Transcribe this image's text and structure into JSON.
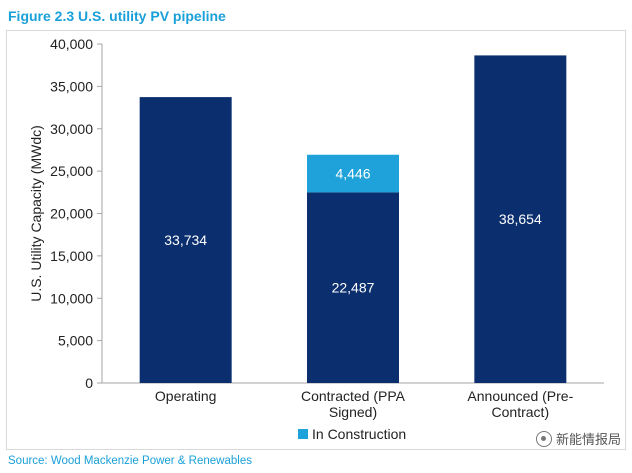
{
  "figure_title": "Figure 2.3 U.S. utility PV pipeline",
  "source": "Source: Wood Mackenzie Power & Renewables",
  "watermark": {
    "text": "新能情报局",
    "icon": "wechat-icon"
  },
  "colors": {
    "primary": "#0b2f6e",
    "secondary": "#1ea2d9",
    "title": "#1aa0d8"
  },
  "chart_data": {
    "type": "bar",
    "stacked": true,
    "ylabel": "U.S. Utility Capacity (MWdc)",
    "ylim": [
      0,
      40000
    ],
    "yticks": [
      "0",
      "5,000",
      "10,000",
      "15,000",
      "20,000",
      "25,000",
      "30,000",
      "35,000",
      "40,000"
    ],
    "categories": [
      [
        "Operating"
      ],
      [
        "Contracted (PPA",
        "Signed)"
      ],
      [
        "Announced (Pre-",
        "Contract)"
      ]
    ],
    "series": [
      {
        "color": "#0b2f6e",
        "values": [
          33734,
          22487,
          38654
        ],
        "labels": [
          "33,734",
          "22,487",
          "38,654"
        ]
      },
      {
        "name": "In Construction",
        "color": "#1ea2d9",
        "values": [
          0,
          4446,
          0
        ],
        "labels": [
          "",
          "4,446",
          ""
        ]
      }
    ],
    "legend": {
      "position": "bottom",
      "entries": [
        "In Construction"
      ]
    },
    "grid": false
  }
}
